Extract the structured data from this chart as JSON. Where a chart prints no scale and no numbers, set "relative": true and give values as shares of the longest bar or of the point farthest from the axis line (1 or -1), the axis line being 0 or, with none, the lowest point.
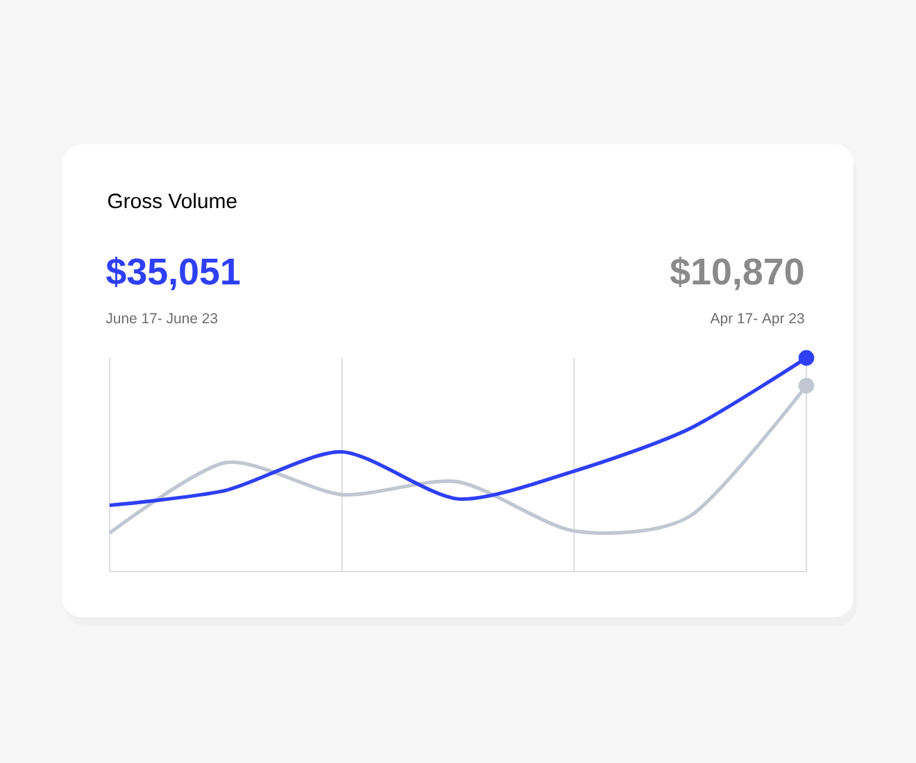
{
  "chart_data": {
    "type": "line",
    "title": "Gross Volume",
    "relative": true,
    "annotations": [
      "$35,051",
      "June 17- June 23",
      "$10,870",
      "Apr 17- Apr 23"
    ],
    "categories": [
      null,
      null,
      null,
      null,
      null,
      null,
      null
    ],
    "series": [
      {
        "color": "#c0c7d1",
        "values": [
          0.18,
          0.51,
          0.36,
          0.42,
          0.19,
          0.26,
          0.87
        ]
      },
      {
        "color": "#2e3ff5",
        "values": [
          0.31,
          0.38,
          0.56,
          0.34,
          0.47,
          0.67,
          1.0
        ]
      }
    ],
    "grid": "x",
    "line_style": "solid"
  }
}
